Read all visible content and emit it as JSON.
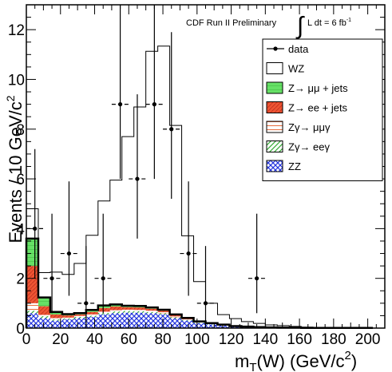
{
  "chart_data": {
    "type": "bar",
    "annotation": "CDF Run II Preliminary",
    "annotation_lumi": "L dt = 6 fb",
    "annotation_lumi_exp": "-1",
    "xlabel": "m",
    "xlabel_sub": "T",
    "xlabel_rest": "(W) (GeV/c",
    "xlabel_sup": "2",
    "xlabel_end": ")",
    "ylabel": "Events / 10 GeV/c",
    "ylabel_sup": "2",
    "xlim": [
      0,
      210
    ],
    "ylim": [
      0,
      13
    ],
    "x_ticks": [
      0,
      20,
      40,
      60,
      80,
      100,
      120,
      140,
      160,
      180,
      200
    ],
    "x_tick_labels": [
      "0",
      "20",
      "40",
      "60",
      "80",
      "100",
      "120",
      "140",
      "160",
      "180",
      "200"
    ],
    "y_ticks": [
      0,
      2,
      4,
      6,
      8,
      10,
      12
    ],
    "y_tick_labels": [
      "0",
      "2",
      "4",
      "6",
      "8",
      "10",
      "12"
    ],
    "bin_edges": [
      0,
      7,
      14,
      21,
      28,
      35,
      42,
      49,
      56,
      63,
      70,
      77,
      84,
      91,
      98,
      105,
      112,
      119,
      126,
      133,
      140,
      147,
      154,
      161,
      168,
      175,
      182,
      189,
      196,
      203
    ],
    "series": [
      {
        "name": "ZZ",
        "values": [
          0.6,
          0.4,
          0.3,
          0.35,
          0.4,
          0.45,
          0.55,
          0.6,
          0.62,
          0.62,
          0.6,
          0.55,
          0.4,
          0.3,
          0.2,
          0.15,
          0.1,
          0.08,
          0.06,
          0.04,
          0.03,
          0.02,
          0.02,
          0.01,
          0.01,
          0.01,
          0.01,
          0.01,
          0.01
        ]
      },
      {
        "name": "Zγ→ eeγ",
        "values": [
          0.1,
          0.08,
          0.05,
          0.04,
          0.05,
          0.05,
          0.06,
          0.07,
          0.07,
          0.06,
          0.05,
          0.05,
          0.04,
          0.03,
          0.02,
          0.01,
          0.01,
          0,
          0,
          0,
          0,
          0,
          0,
          0,
          0,
          0,
          0,
          0,
          0
        ]
      },
      {
        "name": "Zγ→ μμγ",
        "values": [
          0.3,
          0.05,
          0.05,
          0.04,
          0.04,
          0.05,
          0.05,
          0.05,
          0.05,
          0.05,
          0.05,
          0.04,
          0.03,
          0.02,
          0.02,
          0.01,
          0.01,
          0,
          0,
          0,
          0,
          0,
          0,
          0,
          0,
          0,
          0,
          0,
          0
        ]
      },
      {
        "name": "Z→ ee + jets",
        "values": [
          1.5,
          0.35,
          0.15,
          0.08,
          0.06,
          0.1,
          0.15,
          0.15,
          0.1,
          0.1,
          0.08,
          0.06,
          0.05,
          0.04,
          0.02,
          0.02,
          0.01,
          0,
          0,
          0,
          0,
          0,
          0,
          0,
          0,
          0,
          0,
          0,
          0
        ]
      },
      {
        "name": "Z→ μμ + jets",
        "values": [
          1.1,
          0.35,
          0.1,
          0.05,
          0.05,
          0.08,
          0.1,
          0.08,
          0.06,
          0.06,
          0.05,
          0.04,
          0.03,
          0.02,
          0.01,
          0.01,
          0.01,
          0,
          0,
          0,
          0,
          0,
          0,
          0,
          0,
          0,
          0,
          0,
          0
        ]
      },
      {
        "name": "WZ",
        "values": [
          1.2,
          1.0,
          1.6,
          1.6,
          2.0,
          3.0,
          4.2,
          5.0,
          6.8,
          8.0,
          10.3,
          10.6,
          7.6,
          3.3,
          1.6,
          0.8,
          0.4,
          0.3,
          0.2,
          0.15,
          0.1,
          0.08,
          0.05,
          0.03,
          0.02,
          0.02,
          0.01,
          0.01,
          0.01
        ]
      }
    ],
    "data_points": {
      "name": "data",
      "x": [
        5,
        15,
        25,
        35,
        45,
        55,
        65,
        75,
        85,
        95,
        105,
        135
      ],
      "y": [
        4,
        2,
        3,
        1,
        2,
        9,
        6,
        9,
        8,
        3,
        1,
        2
      ],
      "err_lo": [
        2,
        1.4,
        1.7,
        1,
        1.4,
        3,
        2.4,
        3,
        2.8,
        1.7,
        1,
        1.4
      ],
      "err_hi": [
        3.2,
        2.6,
        2.9,
        2.3,
        2.6,
        4,
        3.4,
        4,
        3.9,
        2.9,
        2.3,
        2.6
      ]
    },
    "colors": {
      "WZ": "#ffffff",
      "Z→ μμ + jets": "#66e066",
      "Z→ ee + jets": "#ee5533",
      "Zγ→ μμγ": "#e86a3a",
      "Zγ→ eeγ": "#33aa33",
      "ZZ": "#2233dd"
    },
    "legend": {
      "position": "top-right",
      "entries": [
        "data",
        "WZ",
        "Z→ μμ + jets",
        "Z→ ee + jets",
        "Zγ→ μμγ",
        "Zγ→ eeγ",
        "ZZ"
      ]
    },
    "grid": false
  }
}
